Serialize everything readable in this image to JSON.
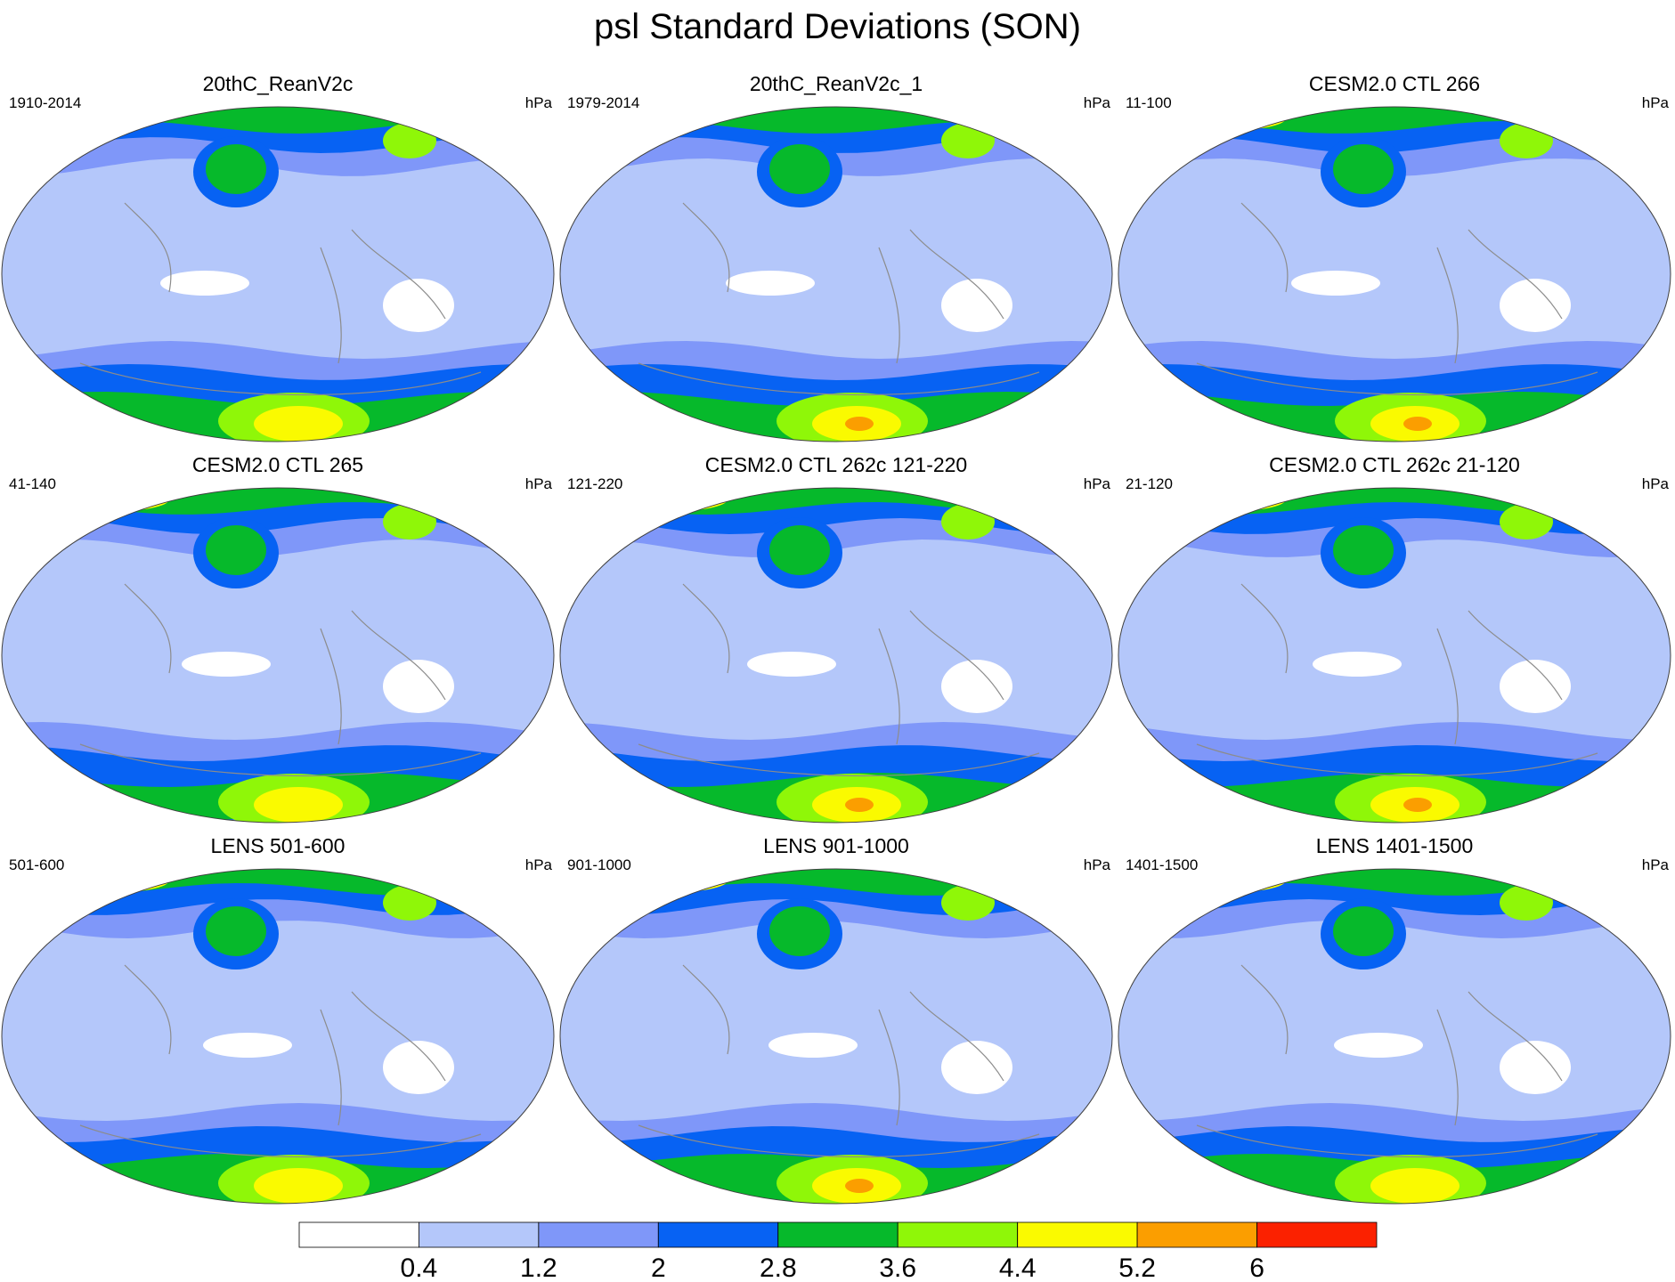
{
  "title": "psl Standard Deviations (SON)",
  "colors": {
    "c0": "#ffffff",
    "c1": "#b4c7fa",
    "c2": "#7f97f9",
    "c3": "#0762f3",
    "c4": "#06b92b",
    "c5": "#8ff708",
    "c6": "#fafa00",
    "c7": "#fb9e00",
    "c8": "#fb2100",
    "coast": "#8c8c8c",
    "outline": "#404040"
  },
  "panels": [
    {
      "title": "20thC_ReanV2c",
      "period": "1910-2014",
      "units": "hPa"
    },
    {
      "title": "20thC_ReanV2c_1",
      "period": "1979-2014",
      "units": "hPa"
    },
    {
      "title": "CESM2.0 CTL 266",
      "period": "11-100",
      "units": "hPa"
    },
    {
      "title": "CESM2.0 CTL 265",
      "period": "41-140",
      "units": "hPa"
    },
    {
      "title": "CESM2.0 CTL 262c 121-220",
      "period": "121-220",
      "units": "hPa"
    },
    {
      "title": "CESM2.0 CTL 262c 21-120",
      "period": "21-120",
      "units": "hPa"
    },
    {
      "title": "LENS 501-600",
      "period": "501-600",
      "units": "hPa"
    },
    {
      "title": "LENS 901-1000",
      "period": "901-1000",
      "units": "hPa"
    },
    {
      "title": "LENS 1401-1500",
      "period": "1401-1500",
      "units": "hPa"
    }
  ],
  "colorbar": {
    "levels": [
      "0.4",
      "1.2",
      "2",
      "2.8",
      "3.6",
      "4.4",
      "5.2",
      "6"
    ],
    "colors": [
      "#ffffff",
      "#b4c7fa",
      "#7f97f9",
      "#0762f3",
      "#06b92b",
      "#8ff708",
      "#fafa00",
      "#fb9e00",
      "#fb2100"
    ]
  }
}
